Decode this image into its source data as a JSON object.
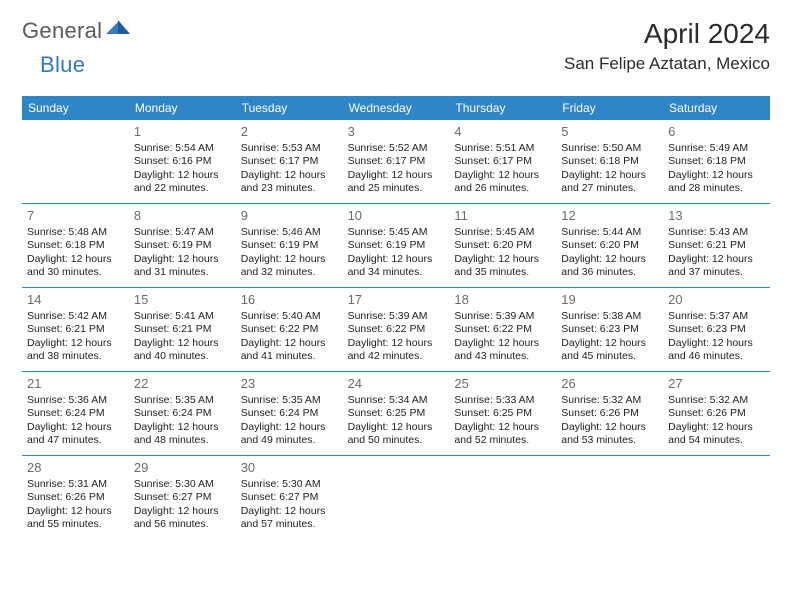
{
  "logo": {
    "part1": "General",
    "part2": "Blue"
  },
  "header": {
    "monthTitle": "April 2024",
    "location": "San Felipe Aztatan, Mexico"
  },
  "colors": {
    "headerBg": "#2f86c6",
    "headerText": "#ffffff",
    "dateNumColor": "#6b6b6b",
    "logoGray": "#5a5a5a",
    "logoBlue": "#2f7ac0",
    "borderColor": "#2f86c6"
  },
  "dayNames": [
    "Sunday",
    "Monday",
    "Tuesday",
    "Wednesday",
    "Thursday",
    "Friday",
    "Saturday"
  ],
  "weeks": [
    [
      {
        "date": "",
        "empty": true
      },
      {
        "date": "1",
        "sunrise": "Sunrise: 5:54 AM",
        "sunset": "Sunset: 6:16 PM",
        "daylight1": "Daylight: 12 hours",
        "daylight2": "and 22 minutes."
      },
      {
        "date": "2",
        "sunrise": "Sunrise: 5:53 AM",
        "sunset": "Sunset: 6:17 PM",
        "daylight1": "Daylight: 12 hours",
        "daylight2": "and 23 minutes."
      },
      {
        "date": "3",
        "sunrise": "Sunrise: 5:52 AM",
        "sunset": "Sunset: 6:17 PM",
        "daylight1": "Daylight: 12 hours",
        "daylight2": "and 25 minutes."
      },
      {
        "date": "4",
        "sunrise": "Sunrise: 5:51 AM",
        "sunset": "Sunset: 6:17 PM",
        "daylight1": "Daylight: 12 hours",
        "daylight2": "and 26 minutes."
      },
      {
        "date": "5",
        "sunrise": "Sunrise: 5:50 AM",
        "sunset": "Sunset: 6:18 PM",
        "daylight1": "Daylight: 12 hours",
        "daylight2": "and 27 minutes."
      },
      {
        "date": "6",
        "sunrise": "Sunrise: 5:49 AM",
        "sunset": "Sunset: 6:18 PM",
        "daylight1": "Daylight: 12 hours",
        "daylight2": "and 28 minutes."
      }
    ],
    [
      {
        "date": "7",
        "sunrise": "Sunrise: 5:48 AM",
        "sunset": "Sunset: 6:18 PM",
        "daylight1": "Daylight: 12 hours",
        "daylight2": "and 30 minutes."
      },
      {
        "date": "8",
        "sunrise": "Sunrise: 5:47 AM",
        "sunset": "Sunset: 6:19 PM",
        "daylight1": "Daylight: 12 hours",
        "daylight2": "and 31 minutes."
      },
      {
        "date": "9",
        "sunrise": "Sunrise: 5:46 AM",
        "sunset": "Sunset: 6:19 PM",
        "daylight1": "Daylight: 12 hours",
        "daylight2": "and 32 minutes."
      },
      {
        "date": "10",
        "sunrise": "Sunrise: 5:45 AM",
        "sunset": "Sunset: 6:19 PM",
        "daylight1": "Daylight: 12 hours",
        "daylight2": "and 34 minutes."
      },
      {
        "date": "11",
        "sunrise": "Sunrise: 5:45 AM",
        "sunset": "Sunset: 6:20 PM",
        "daylight1": "Daylight: 12 hours",
        "daylight2": "and 35 minutes."
      },
      {
        "date": "12",
        "sunrise": "Sunrise: 5:44 AM",
        "sunset": "Sunset: 6:20 PM",
        "daylight1": "Daylight: 12 hours",
        "daylight2": "and 36 minutes."
      },
      {
        "date": "13",
        "sunrise": "Sunrise: 5:43 AM",
        "sunset": "Sunset: 6:21 PM",
        "daylight1": "Daylight: 12 hours",
        "daylight2": "and 37 minutes."
      }
    ],
    [
      {
        "date": "14",
        "sunrise": "Sunrise: 5:42 AM",
        "sunset": "Sunset: 6:21 PM",
        "daylight1": "Daylight: 12 hours",
        "daylight2": "and 38 minutes."
      },
      {
        "date": "15",
        "sunrise": "Sunrise: 5:41 AM",
        "sunset": "Sunset: 6:21 PM",
        "daylight1": "Daylight: 12 hours",
        "daylight2": "and 40 minutes."
      },
      {
        "date": "16",
        "sunrise": "Sunrise: 5:40 AM",
        "sunset": "Sunset: 6:22 PM",
        "daylight1": "Daylight: 12 hours",
        "daylight2": "and 41 minutes."
      },
      {
        "date": "17",
        "sunrise": "Sunrise: 5:39 AM",
        "sunset": "Sunset: 6:22 PM",
        "daylight1": "Daylight: 12 hours",
        "daylight2": "and 42 minutes."
      },
      {
        "date": "18",
        "sunrise": "Sunrise: 5:39 AM",
        "sunset": "Sunset: 6:22 PM",
        "daylight1": "Daylight: 12 hours",
        "daylight2": "and 43 minutes."
      },
      {
        "date": "19",
        "sunrise": "Sunrise: 5:38 AM",
        "sunset": "Sunset: 6:23 PM",
        "daylight1": "Daylight: 12 hours",
        "daylight2": "and 45 minutes."
      },
      {
        "date": "20",
        "sunrise": "Sunrise: 5:37 AM",
        "sunset": "Sunset: 6:23 PM",
        "daylight1": "Daylight: 12 hours",
        "daylight2": "and 46 minutes."
      }
    ],
    [
      {
        "date": "21",
        "sunrise": "Sunrise: 5:36 AM",
        "sunset": "Sunset: 6:24 PM",
        "daylight1": "Daylight: 12 hours",
        "daylight2": "and 47 minutes."
      },
      {
        "date": "22",
        "sunrise": "Sunrise: 5:35 AM",
        "sunset": "Sunset: 6:24 PM",
        "daylight1": "Daylight: 12 hours",
        "daylight2": "and 48 minutes."
      },
      {
        "date": "23",
        "sunrise": "Sunrise: 5:35 AM",
        "sunset": "Sunset: 6:24 PM",
        "daylight1": "Daylight: 12 hours",
        "daylight2": "and 49 minutes."
      },
      {
        "date": "24",
        "sunrise": "Sunrise: 5:34 AM",
        "sunset": "Sunset: 6:25 PM",
        "daylight1": "Daylight: 12 hours",
        "daylight2": "and 50 minutes."
      },
      {
        "date": "25",
        "sunrise": "Sunrise: 5:33 AM",
        "sunset": "Sunset: 6:25 PM",
        "daylight1": "Daylight: 12 hours",
        "daylight2": "and 52 minutes."
      },
      {
        "date": "26",
        "sunrise": "Sunrise: 5:32 AM",
        "sunset": "Sunset: 6:26 PM",
        "daylight1": "Daylight: 12 hours",
        "daylight2": "and 53 minutes."
      },
      {
        "date": "27",
        "sunrise": "Sunrise: 5:32 AM",
        "sunset": "Sunset: 6:26 PM",
        "daylight1": "Daylight: 12 hours",
        "daylight2": "and 54 minutes."
      }
    ],
    [
      {
        "date": "28",
        "sunrise": "Sunrise: 5:31 AM",
        "sunset": "Sunset: 6:26 PM",
        "daylight1": "Daylight: 12 hours",
        "daylight2": "and 55 minutes."
      },
      {
        "date": "29",
        "sunrise": "Sunrise: 5:30 AM",
        "sunset": "Sunset: 6:27 PM",
        "daylight1": "Daylight: 12 hours",
        "daylight2": "and 56 minutes."
      },
      {
        "date": "30",
        "sunrise": "Sunrise: 5:30 AM",
        "sunset": "Sunset: 6:27 PM",
        "daylight1": "Daylight: 12 hours",
        "daylight2": "and 57 minutes."
      },
      {
        "date": "",
        "empty": true,
        "trailing": true
      },
      {
        "date": "",
        "empty": true,
        "trailing": true
      },
      {
        "date": "",
        "empty": true,
        "trailing": true
      },
      {
        "date": "",
        "empty": true,
        "trailing": true
      }
    ]
  ]
}
